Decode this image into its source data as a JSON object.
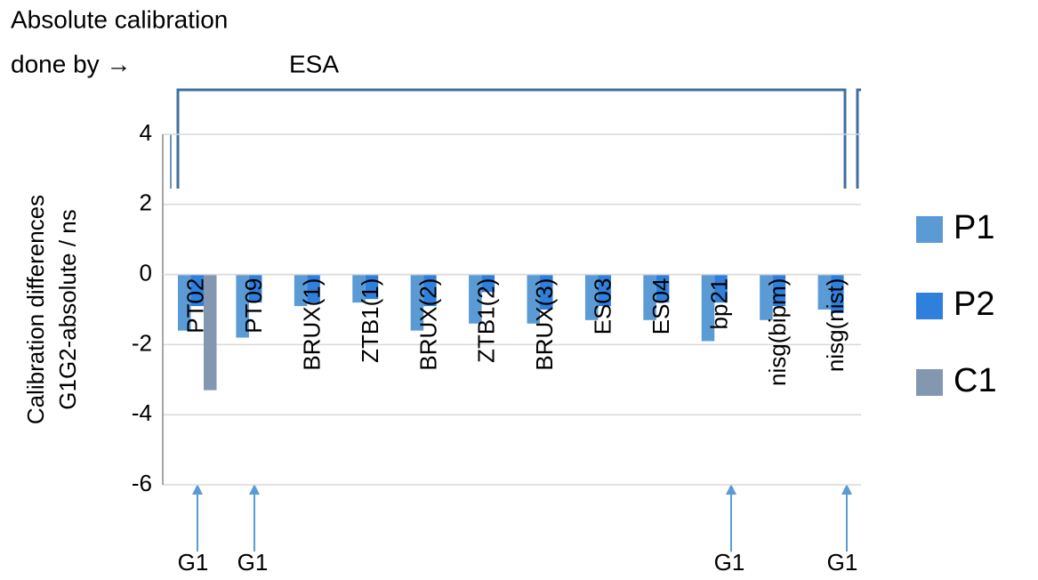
{
  "chart_data": {
    "type": "bar",
    "annotations": [
      "Absolute calibration",
      "done by →",
      "ESA",
      "G1",
      "G1",
      "G1",
      "G1"
    ],
    "y_label": [
      "Calibration differences",
      "G1G2-absolute / ns"
    ],
    "categories": [
      "PT02",
      "PT09",
      "BRUX(1)",
      "ZTB1(1)",
      "BRUX(2)",
      "ZTB1(2)",
      "BRUX(3)",
      "ES03",
      "ES04",
      "bp21",
      "nisg(bipm)",
      "nisg(nist)"
    ],
    "series": [
      {
        "name": "P1",
        "color": "#5b9bd5",
        "values": [
          -1.6,
          -1.8,
          -0.9,
          -0.8,
          -1.6,
          -1.4,
          -1.4,
          -1.3,
          -1.3,
          -1.9,
          -1.3,
          -1.0
        ]
      },
      {
        "name": "P2",
        "color": "#2f7fdc",
        "values": [
          -0.9,
          -0.8,
          -0.8,
          -0.7,
          -0.9,
          -0.5,
          -1.0,
          -0.9,
          -0.8,
          -0.8,
          -0.9,
          -1.1
        ]
      },
      {
        "name": "C1",
        "color": "#8497b0",
        "values": [
          -3.3,
          null,
          null,
          null,
          null,
          null,
          null,
          null,
          null,
          null,
          null,
          null
        ]
      }
    ],
    "ylim": [
      -6,
      4
    ],
    "yticks": [
      -6,
      -4,
      -2,
      0,
      2,
      4
    ],
    "grid": true,
    "legend": "right"
  }
}
